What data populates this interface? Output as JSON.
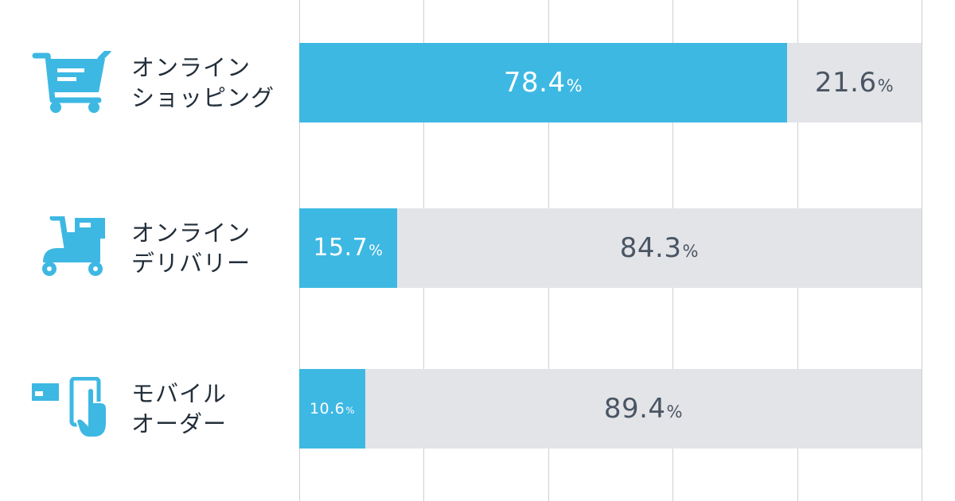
{
  "chart_data": {
    "type": "bar",
    "stacked": true,
    "orientation": "horizontal",
    "categories": [
      {
        "line1": "オンライン",
        "line2": "ショッピング",
        "icon": "shopping-cart-icon"
      },
      {
        "line1": "オンライン",
        "line2": "デリバリー",
        "icon": "delivery-scooter-icon"
      },
      {
        "line1": "モバイル",
        "line2": "オーダー",
        "icon": "mobile-order-icon"
      }
    ],
    "series": [
      {
        "values": [
          78.4,
          15.7,
          10.6
        ],
        "color": "#3db8e3",
        "text_color": "#ffffff"
      },
      {
        "values": [
          21.6,
          84.3,
          89.4
        ],
        "color": "#e3e4e8",
        "text_color": "#4a5563"
      }
    ],
    "unit_suffix": "%",
    "xlim": [
      0,
      100
    ],
    "grid": true
  }
}
